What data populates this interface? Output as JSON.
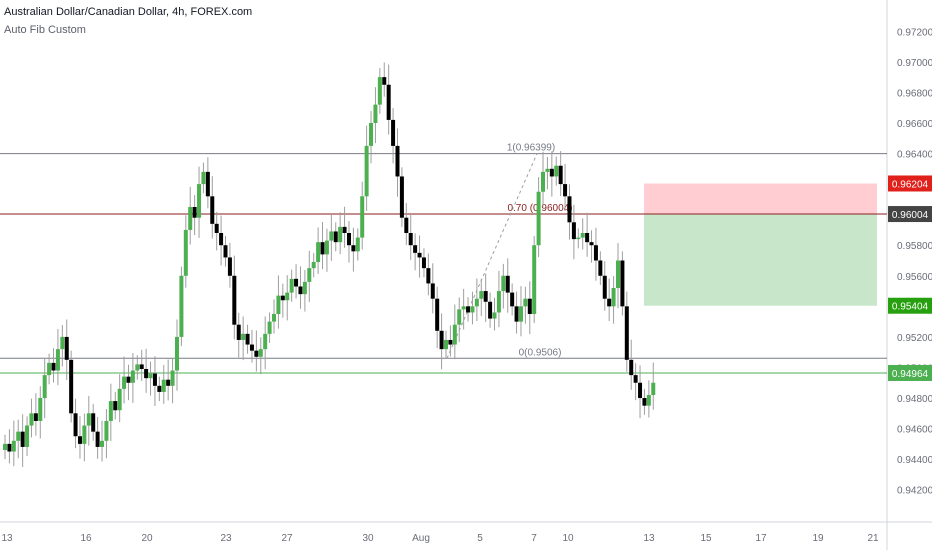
{
  "symbol_title": "Australian Dollar/Canadian Dollar, 4h, FOREX.com",
  "study_label": "Auto Fib Custom",
  "colors": {
    "up": "#4caf50",
    "down": "#000000",
    "wick": "#9e9e9e",
    "fib_line": "#787b86",
    "fib_mid": "#8b1e1e",
    "last_price": "#4caf50",
    "stop_fill": "#ffcdd2",
    "target_fill": "#c8e6c9",
    "tag_red": "#e0201b",
    "tag_dark": "#444444",
    "tag_green": "#27a00f"
  },
  "chart_data": {
    "type": "candlestick",
    "ylim": [
      0.941,
      0.973
    ],
    "y_ticks": [
      "0.94200",
      "0.94400",
      "0.94600",
      "0.94800",
      "0.95000",
      "0.95200",
      "0.95400",
      "0.95600",
      "0.95800",
      "0.96000",
      "0.96200",
      "0.96400",
      "0.96600",
      "0.96800",
      "0.97000",
      "0.97200"
    ],
    "x_ticks": [
      "13",
      "16",
      "20",
      "23",
      "27",
      "30",
      "Aug",
      "5",
      "7",
      "10",
      "13",
      "15",
      "17",
      "19",
      "21"
    ],
    "closes": [
      0.945,
      0.9445,
      0.9452,
      0.9458,
      0.9448,
      0.9462,
      0.947,
      0.9465,
      0.948,
      0.9495,
      0.9503,
      0.9498,
      0.9512,
      0.952,
      0.9505,
      0.947,
      0.9455,
      0.945,
      0.9462,
      0.947,
      0.9458,
      0.9448,
      0.9452,
      0.9465,
      0.9478,
      0.9472,
      0.9486,
      0.9494,
      0.949,
      0.9498,
      0.9502,
      0.9499,
      0.9493,
      0.9496,
      0.9488,
      0.9484,
      0.9492,
      0.9488,
      0.9498,
      0.952,
      0.956,
      0.959,
      0.9605,
      0.9598,
      0.962,
      0.9628,
      0.9612,
      0.9594,
      0.9588,
      0.958,
      0.9572,
      0.956,
      0.9528,
      0.9518,
      0.9522,
      0.9515,
      0.9511,
      0.9507,
      0.9512,
      0.9522,
      0.953,
      0.9535,
      0.9547,
      0.9544,
      0.9549,
      0.9558,
      0.9553,
      0.9548,
      0.9556,
      0.9565,
      0.9569,
      0.9582,
      0.9574,
      0.9583,
      0.9589,
      0.9582,
      0.9592,
      0.9588,
      0.958,
      0.9576,
      0.9585,
      0.9612,
      0.9645,
      0.966,
      0.9672,
      0.969,
      0.9685,
      0.9662,
      0.9645,
      0.9625,
      0.9598,
      0.9588,
      0.958,
      0.9575,
      0.9572,
      0.9565,
      0.9555,
      0.9545,
      0.9524,
      0.9512,
      0.9518,
      0.9515,
      0.9528,
      0.9538,
      0.954,
      0.9536,
      0.954,
      0.9545,
      0.955,
      0.9543,
      0.9532,
      0.9536,
      0.955,
      0.956,
      0.9549,
      0.954,
      0.953,
      0.954,
      0.9545,
      0.9535,
      0.958,
      0.9615,
      0.9628,
      0.963,
      0.9625,
      0.9632,
      0.962,
      0.9612,
      0.9595,
      0.9584,
      0.9585,
      0.9588,
      0.9582,
      0.958,
      0.957,
      0.956,
      0.9545,
      0.954,
      0.9552,
      0.957,
      0.954,
      0.9505,
      0.9495,
      0.949,
      0.948,
      0.9475,
      0.9482,
      0.949
    ],
    "fib_levels": [
      {
        "label": "1(0.96399)",
        "value": 0.96399
      },
      {
        "label": "0.70 (0.96004)",
        "value": 0.96004
      },
      {
        "label": "0(0.9506)",
        "value": 0.9506
      }
    ],
    "position_box": {
      "entry": 0.96004,
      "stop": 0.96204,
      "target": 0.95404
    },
    "last_price": 0.94964,
    "price_tags": [
      {
        "label": "0.96204",
        "value": 0.96204,
        "color": "#e0201b"
      },
      {
        "label": "0.96004",
        "value": 0.96004,
        "color": "#444444"
      },
      {
        "label": "0.95404",
        "value": 0.95404,
        "color": "#27a00f"
      },
      {
        "label": "0.94964",
        "value": 0.94964,
        "color": "#4caf50"
      }
    ]
  }
}
